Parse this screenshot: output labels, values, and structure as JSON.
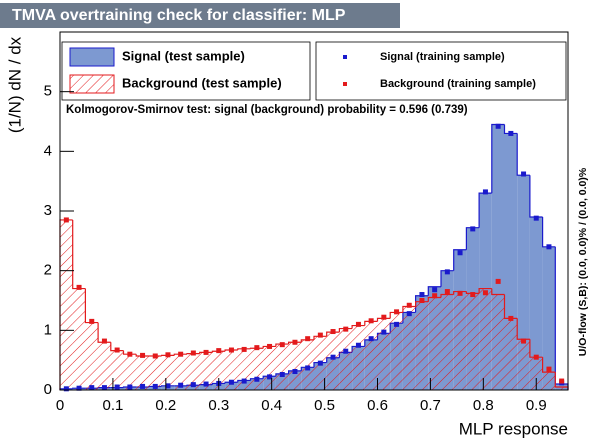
{
  "chart_data": {
    "type": "histogram",
    "title": "TMVA overtraining check for classifier: MLP",
    "xlabel": "MLP response",
    "ylabel": "(1/N) dN / dx",
    "annotation": "Kolmogorov-Smirnov test: signal (background) probability = 0.596 (0.739)",
    "side_note": "U/O-flow (S,B): (0.0, 0.0)% / (0.0, 0.0)%",
    "bins": [
      0,
      0.024,
      0.048,
      0.072,
      0.096,
      0.12,
      0.144,
      0.168,
      0.192,
      0.216,
      0.24,
      0.264,
      0.288,
      0.312,
      0.336,
      0.36,
      0.384,
      0.408,
      0.432,
      0.456,
      0.48,
      0.504,
      0.528,
      0.552,
      0.576,
      0.6,
      0.624,
      0.648,
      0.672,
      0.696,
      0.72,
      0.744,
      0.768,
      0.792,
      0.816,
      0.84,
      0.864,
      0.888,
      0.912,
      0.936,
      0.96
    ],
    "xlim": [
      0,
      0.96
    ],
    "xticks": [
      0,
      0.1,
      0.2,
      0.3,
      0.4,
      0.5,
      0.6,
      0.7,
      0.8,
      0.9
    ],
    "ylim": [
      0,
      6
    ],
    "yticks": [
      0,
      1,
      2,
      3,
      4,
      5
    ],
    "series": [
      {
        "name": "Signal (test sample)",
        "style": "filled",
        "color": "#1a1acc",
        "fill": "#7d99d1",
        "values": [
          0.02,
          0.03,
          0.03,
          0.04,
          0.04,
          0.05,
          0.05,
          0.06,
          0.07,
          0.07,
          0.08,
          0.09,
          0.11,
          0.13,
          0.16,
          0.19,
          0.23,
          0.27,
          0.32,
          0.38,
          0.46,
          0.54,
          0.63,
          0.73,
          0.84,
          0.95,
          1.12,
          1.3,
          1.58,
          1.73,
          2.0,
          2.35,
          2.72,
          3.3,
          4.45,
          4.3,
          3.6,
          2.9,
          2.4,
          0.1
        ]
      },
      {
        "name": "Background (test sample)",
        "style": "hatched",
        "color": "#e31a1c",
        "values": [
          2.85,
          1.7,
          1.13,
          0.8,
          0.66,
          0.6,
          0.57,
          0.57,
          0.58,
          0.6,
          0.61,
          0.63,
          0.65,
          0.67,
          0.69,
          0.7,
          0.73,
          0.77,
          0.8,
          0.84,
          0.9,
          0.97,
          1.03,
          1.08,
          1.15,
          1.2,
          1.3,
          1.4,
          1.48,
          1.55,
          1.6,
          1.65,
          1.62,
          1.7,
          1.6,
          1.2,
          0.85,
          0.55,
          0.3,
          0.05
        ]
      },
      {
        "name": "Signal (training sample)",
        "style": "points",
        "color": "#1a1acc",
        "values": [
          0.02,
          0.03,
          0.04,
          0.04,
          0.05,
          0.05,
          0.06,
          0.06,
          0.07,
          0.08,
          0.09,
          0.1,
          0.11,
          0.13,
          0.15,
          0.18,
          0.22,
          0.26,
          0.31,
          0.37,
          0.45,
          0.55,
          0.65,
          0.75,
          0.86,
          0.97,
          1.1,
          1.28,
          1.6,
          1.68,
          1.98,
          2.3,
          2.7,
          3.32,
          4.42,
          4.3,
          3.62,
          2.88,
          2.4,
          0.12
        ]
      },
      {
        "name": "Background (training sample)",
        "style": "points",
        "color": "#e31a1c",
        "values": [
          2.85,
          1.72,
          1.15,
          0.82,
          0.67,
          0.6,
          0.58,
          0.57,
          0.59,
          0.6,
          0.62,
          0.63,
          0.66,
          0.67,
          0.68,
          0.71,
          0.73,
          0.76,
          0.8,
          0.86,
          0.92,
          0.98,
          1.02,
          1.1,
          1.16,
          1.22,
          1.31,
          1.42,
          1.5,
          1.58,
          1.65,
          1.62,
          1.6,
          1.63,
          1.82,
          1.2,
          0.82,
          0.55,
          0.35,
          0.15
        ]
      }
    ]
  }
}
